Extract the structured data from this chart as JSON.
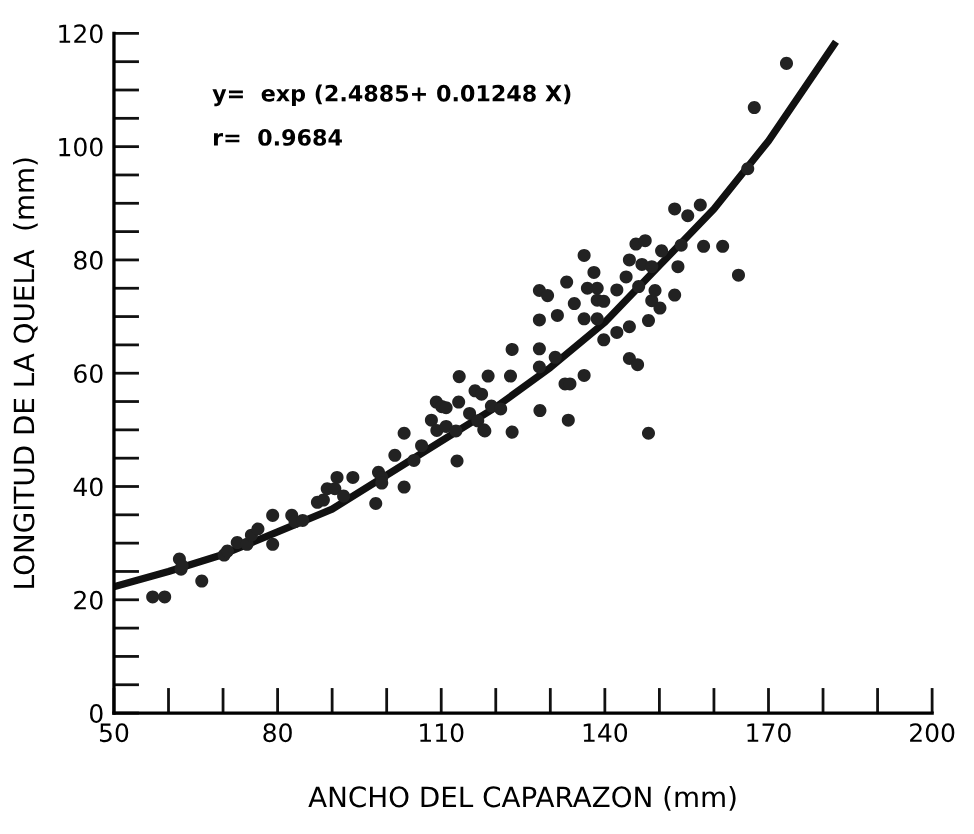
{
  "chart_data": {
    "type": "scatter",
    "xlabel": "ANCHO DEL CAPARAZON (mm)",
    "ylabel": "LONGITUD DE LA QUELA  (mm)",
    "annotations": [
      "y=  exp (2.4885+ 0.01248 X)",
      "r=  0.9684"
    ],
    "xlim": [
      50,
      200
    ],
    "ylim": [
      0,
      120
    ],
    "xticks": [
      50,
      {
        "value": 60,
        "label": null
      },
      {
        "value": 70,
        "label": null
      },
      80,
      {
        "value": 90,
        "label": null
      },
      {
        "value": 100,
        "label": null
      },
      110,
      {
        "value": 120,
        "label": null
      },
      {
        "value": 130,
        "label": null
      },
      140,
      {
        "value": 150,
        "label": null
      },
      {
        "value": 160,
        "label": null
      },
      170,
      {
        "value": 180,
        "label": null
      },
      {
        "value": 190,
        "label": null
      },
      200
    ],
    "yticks": [
      0,
      {
        "value": 5,
        "label": null
      },
      {
        "value": 10,
        "label": null
      },
      {
        "value": 15,
        "label": null
      },
      20,
      {
        "value": 25,
        "label": null
      },
      {
        "value": 30,
        "label": null
      },
      {
        "value": 35,
        "label": null
      },
      40,
      {
        "value": 45,
        "label": null
      },
      {
        "value": 50,
        "label": null
      },
      {
        "value": 55,
        "label": null
      },
      60,
      {
        "value": 65,
        "label": null
      },
      {
        "value": 70,
        "label": null
      },
      {
        "value": 75,
        "label": null
      },
      80,
      {
        "value": 85,
        "label": null
      },
      {
        "value": 90,
        "label": null
      },
      {
        "value": 95,
        "label": null
      },
      100,
      {
        "value": 105,
        "label": null
      },
      {
        "value": 110,
        "label": null
      },
      {
        "value": 115,
        "label": null
      },
      120
    ],
    "grid": false,
    "legend": false,
    "marker": "circle",
    "series": [
      {
        "color": "#222222",
        "x": [
          57.1,
          59.3,
          62.0,
          62.3,
          62.5,
          66.1,
          70.2,
          70.8,
          72.6,
          74.4,
          75.2,
          76.4,
          79.1,
          79.1,
          82.6,
          83.2,
          84.6,
          87.3,
          88.4,
          89.1,
          90.5,
          90.9,
          92.1,
          93.8,
          98.0,
          98.5,
          99.1,
          99.1,
          101.5,
          103.2,
          103.2,
          105.0,
          106.4,
          108.2,
          109.2,
          109.1,
          110.1,
          110.9,
          112.9,
          113.2,
          115.2,
          116.7,
          117.8,
          110.9,
          112.7,
          113.3,
          116.2,
          117.4,
          118.0,
          118.6,
          119.2,
          120.9,
          122.7,
          123.0,
          123.0,
          128.0,
          128.0,
          128.0,
          128.0,
          128.1,
          129.5,
          130.9,
          131.3,
          132.7,
          133.0,
          133.3,
          133.6,
          134.4,
          136.2,
          136.2,
          136.2,
          136.8,
          138.0,
          138.6,
          138.6,
          138.6,
          139.8,
          139.8,
          142.2,
          142.2,
          144.5,
          143.9,
          144.5,
          144.5,
          145.7,
          146.0,
          146.2,
          146.8,
          147.4,
          148.0,
          148.0,
          148.6,
          148.6,
          149.2,
          150.1,
          150.4,
          152.8,
          152.8,
          153.4,
          154.0,
          155.2,
          157.5,
          158.1,
          161.6,
          164.5,
          173.3,
          167.4,
          166.2
        ],
        "values": [
          20.5,
          20.5,
          27.2,
          25.4,
          26.0,
          23.3,
          27.9,
          28.6,
          30.1,
          29.8,
          31.4,
          32.5,
          29.8,
          34.9,
          34.9,
          33.8,
          34.0,
          37.2,
          37.6,
          39.6,
          39.6,
          41.6,
          38.3,
          41.6,
          37.0,
          42.5,
          41.6,
          40.6,
          45.5,
          49.4,
          39.9,
          44.6,
          47.2,
          51.7,
          49.9,
          54.9,
          54.1,
          50.6,
          44.5,
          54.9,
          52.9,
          51.6,
          50.0,
          53.9,
          49.8,
          59.4,
          56.9,
          56.3,
          49.8,
          59.5,
          54.2,
          53.7,
          59.5,
          64.2,
          49.6,
          74.6,
          69.4,
          64.3,
          61.1,
          53.4,
          73.7,
          62.8,
          70.2,
          58.1,
          76.1,
          51.7,
          58.1,
          72.3,
          59.6,
          80.8,
          69.6,
          75.0,
          77.8,
          75.0,
          72.9,
          69.6,
          72.7,
          65.9,
          74.7,
          67.2,
          68.2,
          77.0,
          80.0,
          62.6,
          82.8,
          61.5,
          75.3,
          79.2,
          83.4,
          49.4,
          69.3,
          72.8,
          78.8,
          74.6,
          71.5,
          81.6,
          73.8,
          89.0,
          78.8,
          82.6,
          87.8,
          89.7,
          82.4,
          82.4,
          77.3,
          114.7,
          106.9,
          96.1
        ]
      },
      {
        "type": "line",
        "color": "#111111",
        "marker": "none",
        "line_style": "solid",
        "x": [
          50,
          60,
          70,
          80,
          90,
          100,
          110,
          120,
          130,
          140,
          150,
          160,
          170,
          182
        ],
        "values": [
          22.3,
          25,
          28,
          32,
          36,
          42,
          48,
          54,
          61,
          69,
          79,
          89,
          101,
          118
        ]
      }
    ]
  }
}
